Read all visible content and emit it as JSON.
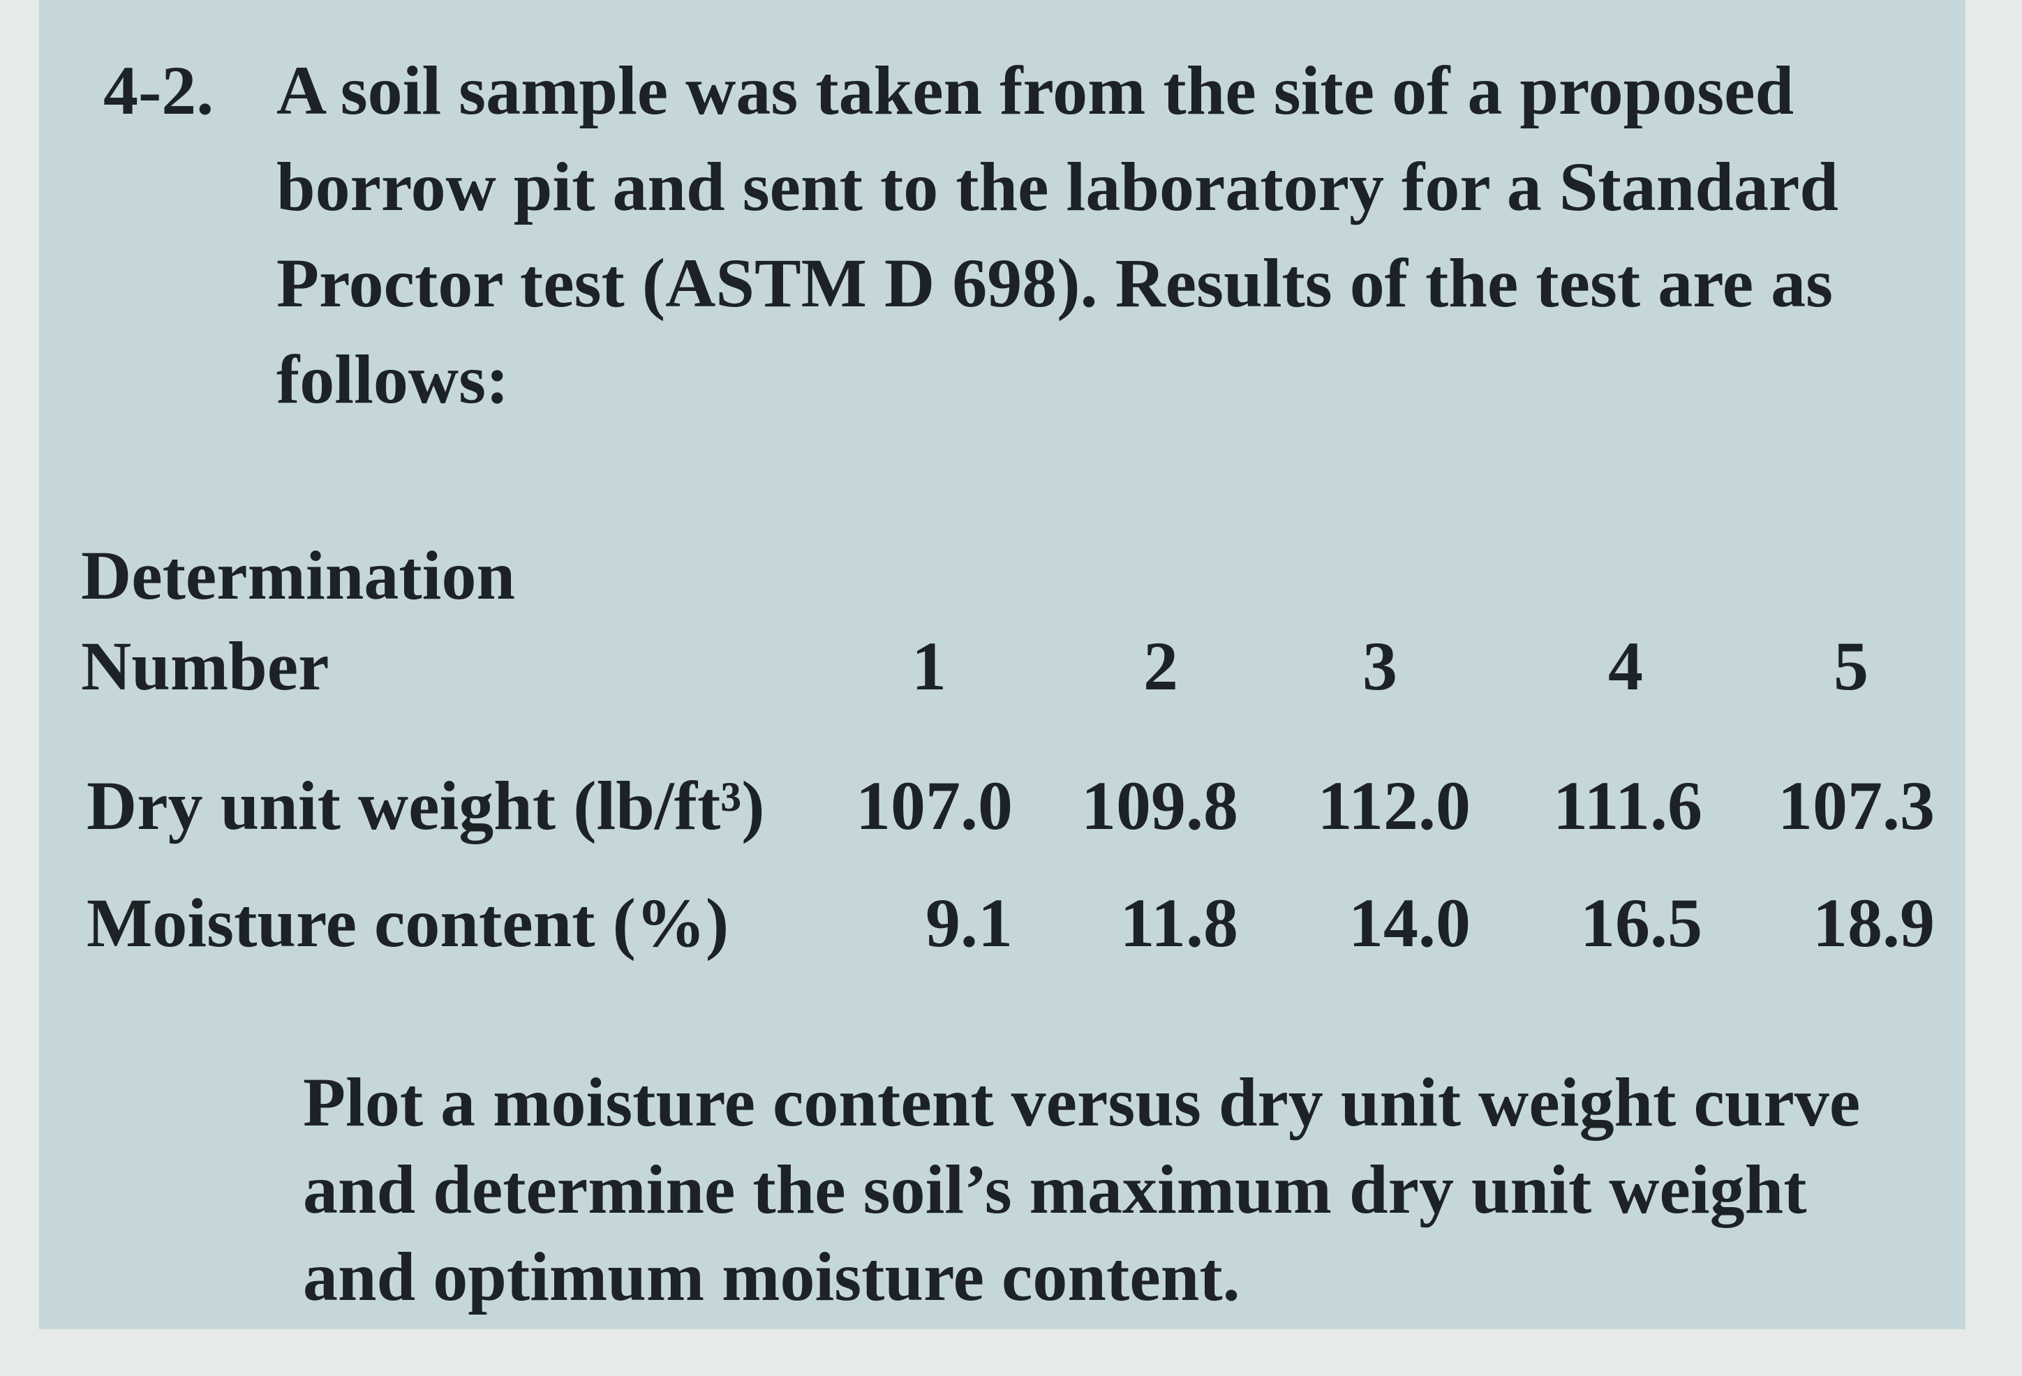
{
  "problem": {
    "number": "4-2.",
    "intro_lines": [
      "A soil sample was taken from the site of a proposed",
      "borrow pit and sent to the laboratory for a Standard",
      "Proctor test (ASTM D 698). Results of the test are as",
      "follows:"
    ],
    "table": {
      "header": [
        "Determination",
        "Number"
      ],
      "columns": [
        "1",
        "2",
        "3",
        "4",
        "5"
      ],
      "rows": [
        [
          "Dry unit weight (lb/ft³)",
          "107.0",
          "109.8",
          "112.0",
          "111.6",
          "107.3"
        ],
        [
          "Moisture content (%)",
          "9.1",
          "11.8",
          "14.0",
          "16.5",
          "18.9"
        ]
      ]
    },
    "task_lines": [
      "Plot a moisture content versus dry unit weight curve",
      "and determine the soil’s maximum dry unit weight",
      "and optimum moisture content."
    ]
  }
}
